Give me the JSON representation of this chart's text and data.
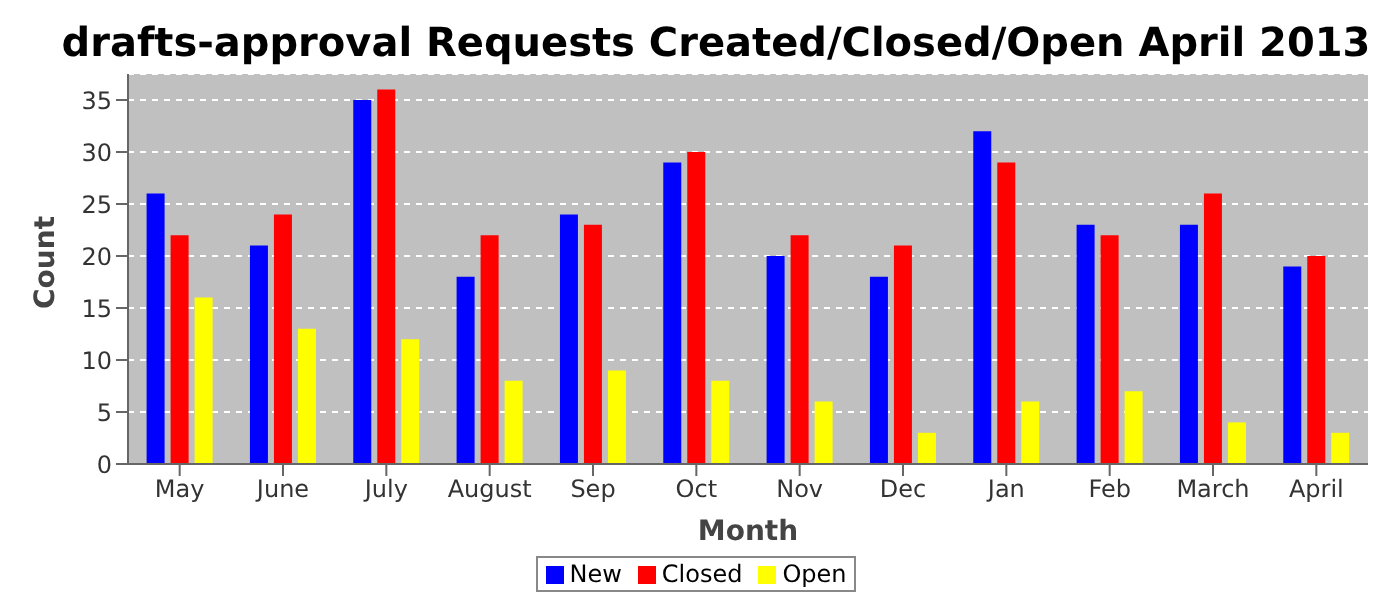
{
  "chart_data": {
    "type": "bar",
    "title": "drafts-approval Requests Created/Closed/Open April 2013",
    "xlabel": "Month",
    "ylabel": "Count",
    "categories": [
      "May",
      "June",
      "July",
      "August",
      "Sep",
      "Oct",
      "Nov",
      "Dec",
      "Jan",
      "Feb",
      "March",
      "April"
    ],
    "series": [
      {
        "name": "New",
        "color": "#0000ff",
        "values": [
          26,
          21,
          35,
          18,
          24,
          29,
          20,
          18,
          32,
          23,
          23,
          19
        ]
      },
      {
        "name": "Closed",
        "color": "#ff0000",
        "values": [
          22,
          24,
          36,
          22,
          23,
          30,
          22,
          21,
          29,
          22,
          26,
          20
        ]
      },
      {
        "name": "Open",
        "color": "#ffff00",
        "values": [
          16,
          13,
          12,
          8,
          9,
          8,
          6,
          3,
          6,
          7,
          4,
          3
        ]
      }
    ],
    "ylim": [
      0,
      37.5
    ],
    "yticks": [
      0,
      5,
      10,
      15,
      20,
      25,
      30,
      35
    ],
    "grid": "y",
    "legend": "bottom"
  }
}
